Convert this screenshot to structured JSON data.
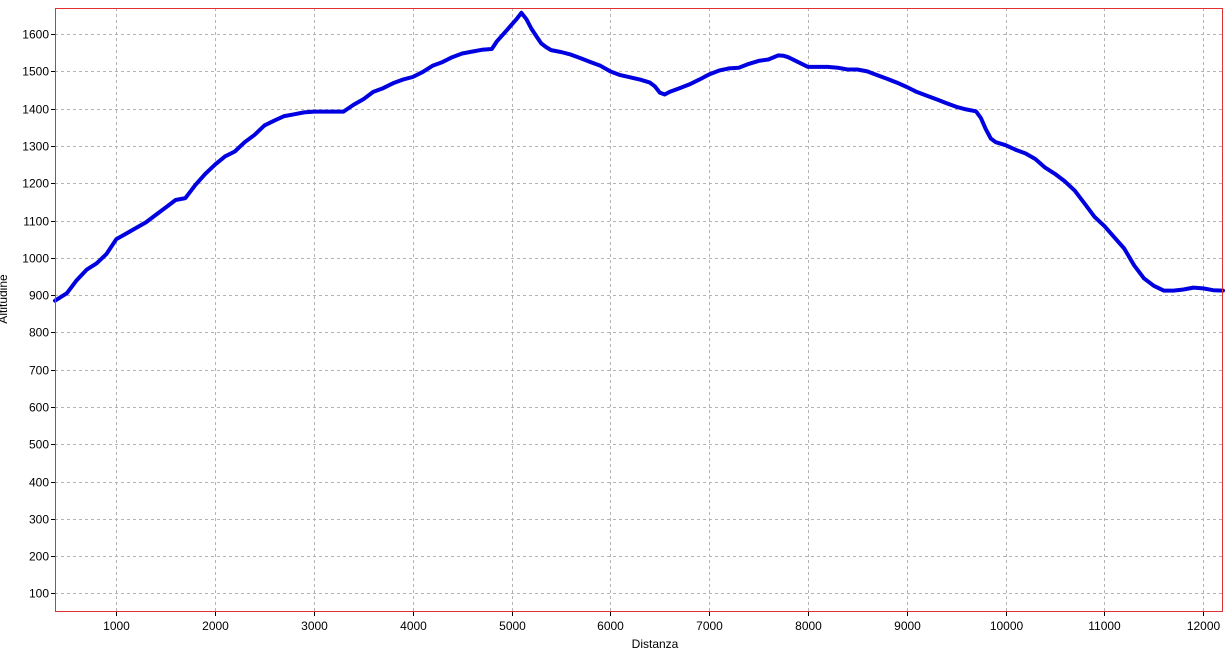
{
  "chart_data": {
    "type": "line",
    "title": "",
    "xlabel": "Distanza",
    "ylabel": "Altitudine",
    "xlim": [
      380,
      12200
    ],
    "ylim": [
      50,
      1670
    ],
    "x_ticks": [
      1000,
      2000,
      3000,
      4000,
      5000,
      6000,
      7000,
      8000,
      9000,
      10000,
      11000,
      12000
    ],
    "y_ticks": [
      100,
      200,
      300,
      400,
      500,
      600,
      700,
      800,
      900,
      1000,
      1100,
      1200,
      1300,
      1400,
      1500,
      1600
    ],
    "grid": true,
    "legend": "none",
    "colors": {
      "line": "#0000e0",
      "frame": "#e03030",
      "grid": "#b4b4b4"
    },
    "series": [
      {
        "x": [
          380,
          500,
          600,
          700,
          800,
          900,
          1000,
          1100,
          1200,
          1300,
          1400,
          1500,
          1600,
          1700,
          1800,
          1900,
          2000,
          2100,
          2200,
          2300,
          2400,
          2500,
          2600,
          2700,
          2800,
          2900,
          3000,
          3100,
          3200,
          3300,
          3400,
          3500,
          3600,
          3700,
          3800,
          3900,
          4000,
          4100,
          4200,
          4300,
          4400,
          4500,
          4600,
          4700,
          4800,
          4850,
          4950,
          5050,
          5100,
          5150,
          5200,
          5250,
          5300,
          5350,
          5400,
          5500,
          5600,
          5700,
          5800,
          5900,
          6000,
          6100,
          6200,
          6300,
          6400,
          6450,
          6500,
          6550,
          6600,
          6700,
          6800,
          6900,
          7000,
          7100,
          7200,
          7300,
          7400,
          7500,
          7600,
          7700,
          7750,
          7800,
          7900,
          8000,
          8100,
          8200,
          8300,
          8400,
          8500,
          8600,
          8700,
          8800,
          8900,
          9000,
          9100,
          9200,
          9300,
          9400,
          9500,
          9600,
          9700,
          9750,
          9800,
          9850,
          9900,
          10000,
          10100,
          10200,
          10300,
          10400,
          10500,
          10600,
          10700,
          10800,
          10900,
          11000,
          11100,
          11200,
          11300,
          11400,
          11500,
          11600,
          11700,
          11800,
          11900,
          12000,
          12100,
          12200
        ],
        "values": [
          885,
          905,
          940,
          968,
          985,
          1010,
          1050,
          1065,
          1080,
          1095,
          1115,
          1135,
          1155,
          1160,
          1195,
          1225,
          1250,
          1272,
          1285,
          1310,
          1330,
          1355,
          1368,
          1380,
          1385,
          1390,
          1392,
          1392,
          1392,
          1392,
          1410,
          1425,
          1445,
          1455,
          1468,
          1478,
          1485,
          1498,
          1515,
          1525,
          1538,
          1548,
          1553,
          1558,
          1560,
          1580,
          1610,
          1640,
          1657,
          1640,
          1615,
          1595,
          1575,
          1565,
          1557,
          1552,
          1545,
          1535,
          1525,
          1515,
          1500,
          1490,
          1484,
          1478,
          1470,
          1460,
          1443,
          1438,
          1445,
          1455,
          1465,
          1478,
          1492,
          1502,
          1508,
          1510,
          1520,
          1528,
          1532,
          1543,
          1542,
          1538,
          1525,
          1512,
          1512,
          1512,
          1510,
          1505,
          1505,
          1500,
          1490,
          1480,
          1470,
          1458,
          1445,
          1435,
          1425,
          1415,
          1405,
          1398,
          1393,
          1375,
          1345,
          1320,
          1310,
          1302,
          1290,
          1280,
          1265,
          1242,
          1225,
          1205,
          1180,
          1145,
          1110,
          1085,
          1055,
          1025,
          980,
          945,
          925,
          912,
          912,
          915,
          920,
          918,
          913,
          912
        ]
      }
    ]
  }
}
